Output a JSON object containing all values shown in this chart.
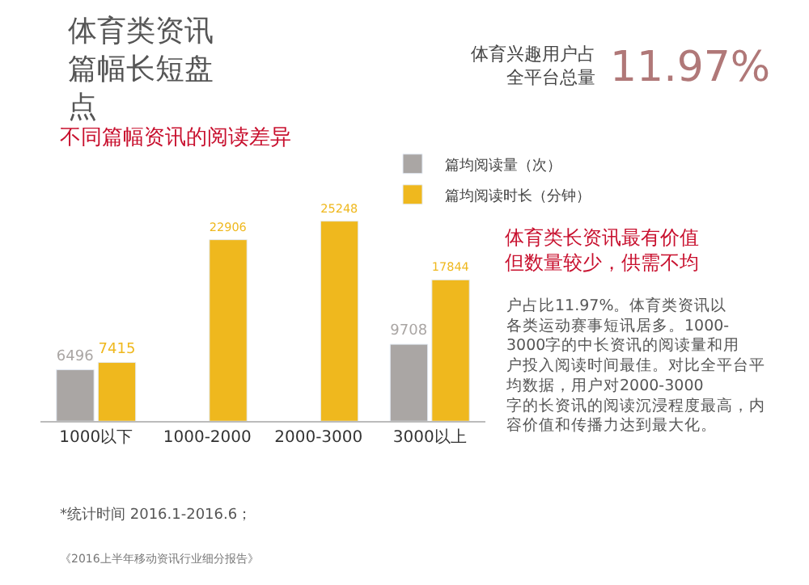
{
  "chart_data": {
    "type": "bar",
    "title": "体育类资讯篇幅长短盘点",
    "subtitle": "不同篇幅资讯的阅读差异",
    "categories": [
      "1000以下",
      "1000-2000",
      "2000-3000",
      "3000以上"
    ],
    "series": [
      {
        "name": "篇均阅读量（次）",
        "color": "#aaa6a4",
        "values": [
          6496,
          null,
          null,
          9708
        ]
      },
      {
        "name": "篇均阅读时长（分钟）",
        "color": "#efb81e",
        "values": [
          7415,
          22906,
          25248,
          17844
        ]
      }
    ],
    "data_labels": true,
    "legend": "top right",
    "annotations": [
      "体育兴趣用户占全平台总量",
      "11.97%",
      "体育类长资讯最有价值但数量较少，供需不均",
      "户占比11.97%。体育类资讯以各类运动赛事短讯居多。1000-3000字的中长资讯的阅读量和用户投入阅读时间最佳。对比全平台平均数据，用户对2000-3000字的长资讯的阅读沉浸程度最高，内容价值和传播力达到最大化。",
      "*统计时间 2016.1-2016.6；",
      "《2016上半年移动资讯行业细分报告》"
    ]
  }
}
